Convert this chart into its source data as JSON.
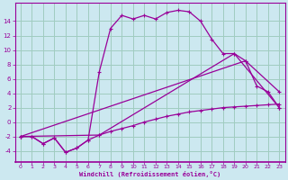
{
  "background_color": "#cce8f0",
  "grid_color": "#a0ccc0",
  "line_color": "#990099",
  "xlabel": "Windchill (Refroidissement éolien,°C)",
  "xlim": [
    -0.5,
    23.5
  ],
  "ylim": [
    -5.5,
    16.5
  ],
  "yticks": [
    -4,
    -2,
    0,
    2,
    4,
    6,
    8,
    10,
    12,
    14
  ],
  "xticks": [
    0,
    1,
    2,
    3,
    4,
    5,
    6,
    7,
    8,
    9,
    10,
    11,
    12,
    13,
    14,
    15,
    16,
    17,
    18,
    19,
    20,
    21,
    22,
    23
  ],
  "line1_x": [
    0,
    1,
    2,
    3,
    4,
    5,
    6,
    7,
    8,
    9,
    10,
    11,
    12,
    13,
    14,
    15,
    16,
    17,
    18,
    19,
    20,
    21,
    22,
    23
  ],
  "line1_y": [
    -2,
    -2,
    -3,
    -2.2,
    -4.2,
    -3.6,
    -2.5,
    7,
    13,
    14.8,
    14.3,
    14.8,
    14.3,
    15.2,
    15.5,
    15.3,
    14.0,
    11.5,
    9.5,
    9.5,
    8.5,
    5.0,
    4.2,
    2.0
  ],
  "line2_x": [
    0,
    1,
    2,
    3,
    4,
    5,
    6,
    7,
    8,
    9,
    10,
    11,
    12,
    13,
    14,
    15,
    16,
    17,
    18,
    19,
    20,
    21,
    22,
    23
  ],
  "line2_y": [
    -2.0,
    -2.0,
    -3.0,
    -2.2,
    -4.2,
    -3.6,
    -2.5,
    -1.8,
    -1.3,
    -0.9,
    -0.5,
    0.0,
    0.4,
    0.8,
    1.1,
    1.4,
    1.6,
    1.8,
    2.0,
    2.1,
    2.2,
    2.3,
    2.4,
    2.5
  ],
  "line3_x": [
    0,
    7,
    19,
    23
  ],
  "line3_y": [
    -2.0,
    -1.8,
    9.5,
    2.0
  ],
  "line4_x": [
    0,
    20,
    23
  ],
  "line4_y": [
    -2.0,
    8.5,
    4.2
  ]
}
